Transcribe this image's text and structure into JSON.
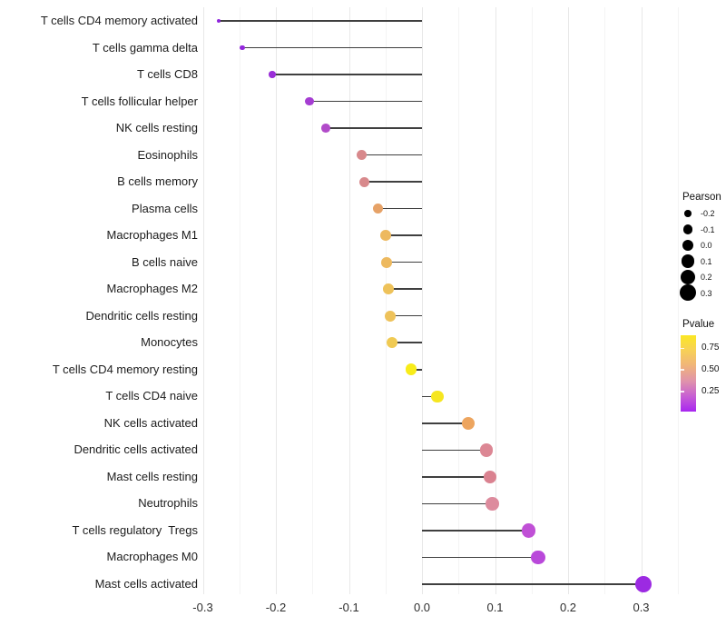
{
  "chart_data": {
    "type": "scatter",
    "style": "lollipop",
    "title": "",
    "xlabel": "",
    "ylabel": "",
    "grid": "on",
    "xlim": [
      -0.31,
      0.355
    ],
    "x_ticks": [
      "-0.3",
      "-0.2",
      "-0.1",
      "0.0",
      "0.1",
      "0.2",
      "0.3"
    ],
    "points": [
      {
        "label": "T cells CD4 memory activated",
        "pearson": -0.278,
        "pvalue_approx": 0.08,
        "color": "#8f25dd"
      },
      {
        "label": "T cells gamma delta",
        "pearson": -0.246,
        "pvalue_approx": 0.09,
        "color": "#9327dc"
      },
      {
        "label": "T cells CD8",
        "pearson": -0.205,
        "pvalue_approx": 0.12,
        "color": "#9a2ed7"
      },
      {
        "label": "T cells follicular helper",
        "pearson": -0.154,
        "pvalue_approx": 0.17,
        "color": "#a53dd2"
      },
      {
        "label": "NK cells resting",
        "pearson": -0.132,
        "pvalue_approx": 0.22,
        "color": "#b14bc9"
      },
      {
        "label": "Eosinophils",
        "pearson": -0.082,
        "pvalue_approx": 0.48,
        "color": "#d8898c"
      },
      {
        "label": "B cells memory",
        "pearson": -0.079,
        "pvalue_approx": 0.48,
        "color": "#d8898c"
      },
      {
        "label": "Plasma cells",
        "pearson": -0.06,
        "pvalue_approx": 0.62,
        "color": "#e6a267"
      },
      {
        "label": "Macrophages M1",
        "pearson": -0.05,
        "pvalue_approx": 0.68,
        "color": "#edb95f"
      },
      {
        "label": "B cells naive",
        "pearson": -0.048,
        "pvalue_approx": 0.68,
        "color": "#edb95f"
      },
      {
        "label": "Macrophages M2",
        "pearson": -0.046,
        "pvalue_approx": 0.71,
        "color": "#eec25a"
      },
      {
        "label": "Dendritic cells resting",
        "pearson": -0.044,
        "pvalue_approx": 0.71,
        "color": "#eec25a"
      },
      {
        "label": "Monocytes",
        "pearson": -0.041,
        "pvalue_approx": 0.74,
        "color": "#f0ca53"
      },
      {
        "label": "T cells CD4 memory resting",
        "pearson": -0.015,
        "pvalue_approx": 0.92,
        "color": "#f8ec19"
      },
      {
        "label": "T cells CD4 naive",
        "pearson": 0.021,
        "pvalue_approx": 0.88,
        "color": "#f6e620"
      },
      {
        "label": "NK cells activated",
        "pearson": 0.063,
        "pvalue_approx": 0.63,
        "color": "#eda55f"
      },
      {
        "label": "Dendritic cells activated",
        "pearson": 0.088,
        "pvalue_approx": 0.45,
        "color": "#dc8794"
      },
      {
        "label": "Mast cells resting",
        "pearson": 0.093,
        "pvalue_approx": 0.44,
        "color": "#da8290"
      },
      {
        "label": "Neutrophils",
        "pearson": 0.096,
        "pvalue_approx": 0.46,
        "color": "#dd8b9d"
      },
      {
        "label": "T cells regulatory  Tregs",
        "pearson": 0.146,
        "pvalue_approx": 0.24,
        "color": "#c050d6"
      },
      {
        "label": "Macrophages M0",
        "pearson": 0.159,
        "pvalue_approx": 0.22,
        "color": "#b948da"
      },
      {
        "label": "Mast cells activated",
        "pearson": 0.303,
        "pvalue_approx": 0.05,
        "color": "#9c2ae2"
      }
    ],
    "legend_size": {
      "title": "Pearson",
      "labels": [
        "-0.2",
        "-0.1",
        "0.0",
        "0.1",
        "0.2",
        "0.3"
      ]
    },
    "legend_color": {
      "title": "Pvalue",
      "ticks": [
        "0.75",
        "0.50",
        "0.25"
      ],
      "range": [
        0.02,
        0.9
      ],
      "top_color": "#fbe723",
      "bottom_color": "#a826f0"
    }
  }
}
